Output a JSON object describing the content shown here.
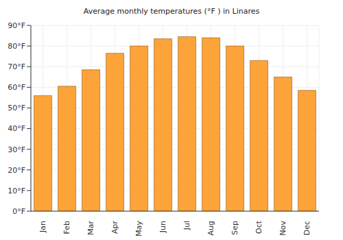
{
  "chart_data": {
    "type": "bar",
    "title": "Average monthly temperatures (°F ) in Linares",
    "categories": [
      "Jan",
      "Feb",
      "Mar",
      "Apr",
      "May",
      "Jun",
      "Jul",
      "Aug",
      "Sep",
      "Oct",
      "Nov",
      "Dec"
    ],
    "values": [
      56,
      60.5,
      68.5,
      76.5,
      80,
      83.5,
      84.5,
      84,
      80,
      73,
      65,
      58.5
    ],
    "color": "#fca33a",
    "ylim": [
      0,
      90
    ],
    "yticks": [
      {
        "value": 0,
        "label": "0°F"
      },
      {
        "value": 10,
        "label": "10°F"
      },
      {
        "value": 20,
        "label": "20°F"
      },
      {
        "value": 30,
        "label": "30°F"
      },
      {
        "value": 40,
        "label": "40°F"
      },
      {
        "value": 50,
        "label": "50°F"
      },
      {
        "value": 60,
        "label": "60°F"
      },
      {
        "value": 70,
        "label": "70°F"
      },
      {
        "value": 80,
        "label": "80°F"
      },
      {
        "value": 90,
        "label": "90°F"
      }
    ],
    "grid": true
  }
}
